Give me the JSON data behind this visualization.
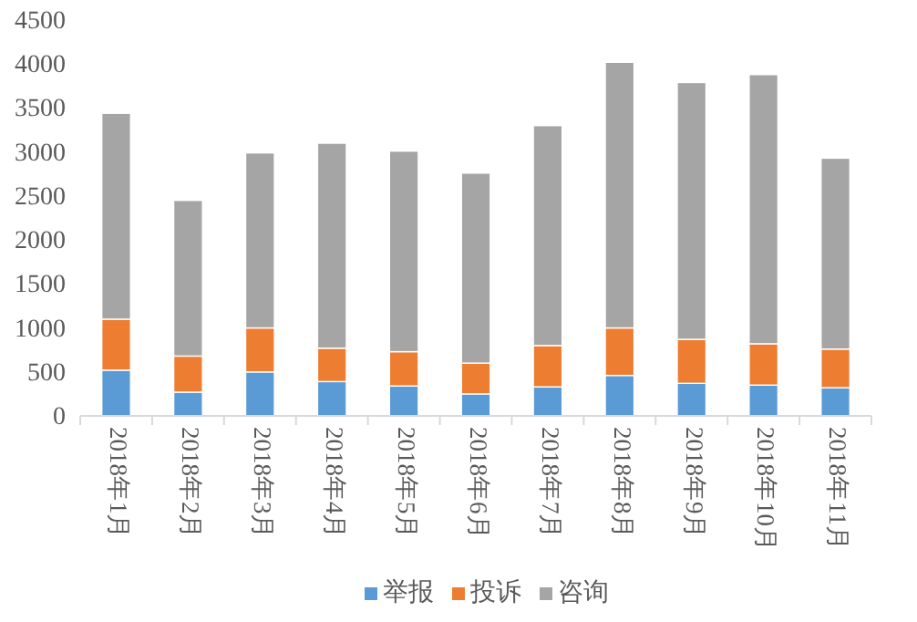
{
  "chart_data": {
    "type": "bar",
    "stacked": true,
    "categories": [
      "2018年1月",
      "2018年2月",
      "2018年3月",
      "2018年4月",
      "2018年5月",
      "2018年6月",
      "2018年7月",
      "2018年8月",
      "2018年9月",
      "2018年10月",
      "2018年11月"
    ],
    "series": [
      {
        "name": "举报",
        "color": "#5b9bd5",
        "values": [
          520,
          270,
          500,
          390,
          340,
          250,
          330,
          460,
          370,
          350,
          320
        ]
      },
      {
        "name": "投诉",
        "color": "#ed7d31",
        "values": [
          580,
          410,
          500,
          380,
          390,
          350,
          470,
          540,
          500,
          470,
          440
        ]
      },
      {
        "name": "咨询",
        "color": "#a5a5a5",
        "values": [
          2340,
          1770,
          1990,
          2330,
          2280,
          2160,
          2500,
          3020,
          2920,
          3060,
          2170
        ]
      }
    ],
    "ylim": [
      0,
      4500
    ],
    "yticks": [
      0,
      500,
      1000,
      1500,
      2000,
      2500,
      3000,
      3500,
      4000,
      4500
    ],
    "grid": false,
    "legend": "bottom"
  }
}
